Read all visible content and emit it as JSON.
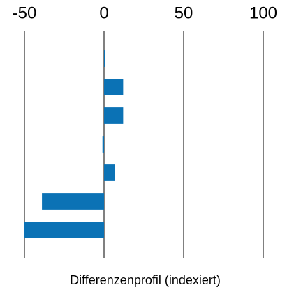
{
  "chart_data": {
    "type": "bar",
    "orientation": "horizontal",
    "xlabel": "Differenzenprofil (indexiert)",
    "categories": [
      null,
      null,
      null,
      null,
      null,
      null,
      null
    ],
    "values": [
      0.5,
      12,
      12,
      -1,
      7,
      -39,
      -50
    ],
    "color": "#0b72b5",
    "xlim": [
      -50,
      100
    ],
    "xticks": [
      -50,
      0,
      50,
      100
    ],
    "grid": true
  }
}
